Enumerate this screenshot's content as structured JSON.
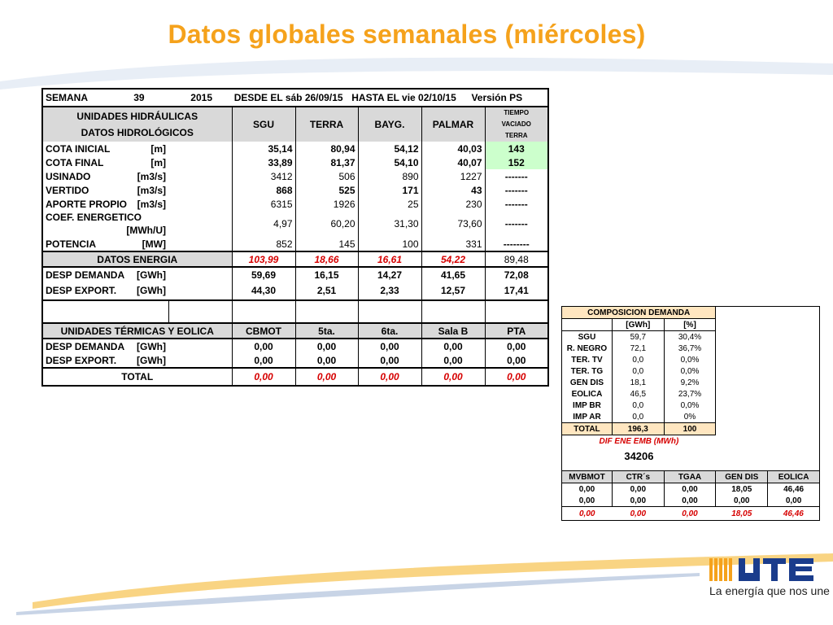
{
  "title": "Datos globales semanales  (miércoles)",
  "header": {
    "semana": "SEMANA",
    "week": "39",
    "year": "2015",
    "desde": "DESDE EL sáb 26/09/15",
    "hasta": "HASTA EL  vie 02/10/15",
    "version": "Versión  PS"
  },
  "hydro": {
    "heading1": "UNIDADES HIDRÁULICAS",
    "heading2": "DATOS HIDROLÓGICOS",
    "cols": [
      "SGU",
      "TERRA",
      "BAYG.",
      "PALMAR"
    ],
    "tiempo": [
      "TIEMPO",
      "VACIADO",
      "TERRA"
    ],
    "rows": [
      {
        "label": "COTA INICIAL",
        "unit": "[m]",
        "vals": [
          "35,14",
          "80,94",
          "54,12",
          "40,03"
        ],
        "last": "143"
      },
      {
        "label": "COTA FINAL",
        "unit": "[m]",
        "vals": [
          "33,89",
          "81,37",
          "54,10",
          "40,07"
        ],
        "last": "152"
      },
      {
        "label": "USINADO",
        "unit": "[m3/s]",
        "vals": [
          "3412",
          "506",
          "890",
          "1227"
        ],
        "last": "-------"
      },
      {
        "label": "VERTIDO",
        "unit": "[m3/s]",
        "vals": [
          "868",
          "525",
          "171",
          "43"
        ],
        "last": "-------"
      },
      {
        "label": "APORTE PROPIO",
        "unit": "[m3/s]",
        "vals": [
          "6315",
          "1926",
          "25",
          "230"
        ],
        "last": "-------"
      },
      {
        "label": "COEF. ENERGETICO",
        "unit": "[MWh/U]",
        "vals": [
          "4,97",
          "60,20",
          "31,30",
          "73,60"
        ],
        "last": "-------"
      },
      {
        "label": "POTENCIA",
        "unit": "[MW]",
        "vals": [
          "852",
          "145",
          "100",
          "331"
        ],
        "last": "--------"
      }
    ],
    "energia": {
      "label": "DATOS ENERGIA",
      "vals": [
        "103,99",
        "18,66",
        "16,61",
        "54,22"
      ],
      "last": "89,48"
    },
    "desp": [
      {
        "label": "DESP DEMANDA",
        "unit": "[GWh]",
        "vals": [
          "59,69",
          "16,15",
          "14,27",
          "41,65"
        ],
        "last": "72,08"
      },
      {
        "label": "DESP EXPORT.",
        "unit": "[GWh]",
        "vals": [
          "44,30",
          "2,51",
          "2,33",
          "12,57"
        ],
        "last": "17,41"
      }
    ]
  },
  "thermal": {
    "heading": "UNIDADES TÉRMICAS Y EOLICA",
    "cols": [
      "CBMOT",
      "5ta.",
      "6ta.",
      "Sala B",
      "PTA"
    ],
    "rows": [
      {
        "label": "DESP DEMANDA",
        "unit": "[GWh]",
        "vals": [
          "0,00",
          "0,00",
          "0,00",
          "0,00",
          "0,00"
        ]
      },
      {
        "label": "DESP EXPORT.",
        "unit": "[GWh]",
        "vals": [
          "0,00",
          "0,00",
          "0,00",
          "0,00",
          "0,00"
        ]
      }
    ],
    "total": {
      "label": "TOTAL",
      "vals": [
        "0,00",
        "0,00",
        "0,00",
        "0,00",
        "0,00"
      ]
    }
  },
  "composicion": {
    "title": "COMPOSICION DEMANDA",
    "headers": [
      "[GWh]",
      "[%]"
    ],
    "rows": [
      {
        "label": "SGU",
        "gwh": "59,7",
        "pct": "30,4%"
      },
      {
        "label": "R. NEGRO",
        "gwh": "72,1",
        "pct": "36,7%"
      },
      {
        "label": "TER. TV",
        "gwh": "0,0",
        "pct": "0,0%"
      },
      {
        "label": "TER. TG",
        "gwh": "0,0",
        "pct": "0,0%"
      },
      {
        "label": "GEN DIS",
        "gwh": "18,1",
        "pct": "9,2%"
      },
      {
        "label": "EOLICA",
        "gwh": "46,5",
        "pct": "23,7%"
      },
      {
        "label": "IMP BR",
        "gwh": "0,0",
        "pct": "0,0%"
      },
      {
        "label": "IMP AR",
        "gwh": "0,0",
        "pct": "0%"
      }
    ],
    "total": {
      "label": "TOTAL",
      "gwh": "196,3",
      "pct": "100"
    },
    "dif_label": "DIF ENE EMB (MWh)",
    "dif_value": "34206",
    "bottom_headers": [
      "MVBMOT",
      "CTR´s",
      "TGAA",
      "GEN DIS",
      "EOLICA"
    ],
    "bottom_rows": [
      [
        "0,00",
        "0,00",
        "0,00",
        "18,05",
        "46,46"
      ],
      [
        "0,00",
        "0,00",
        "0,00",
        "0,00",
        "0,00"
      ]
    ],
    "bottom_total": [
      "0,00",
      "0,00",
      "0,00",
      "18,05",
      "46,46"
    ]
  },
  "logo": {
    "tagline": "La energía que nos une",
    "brand_color": "#1a3c8c",
    "accent_color": "#f5a21c"
  }
}
